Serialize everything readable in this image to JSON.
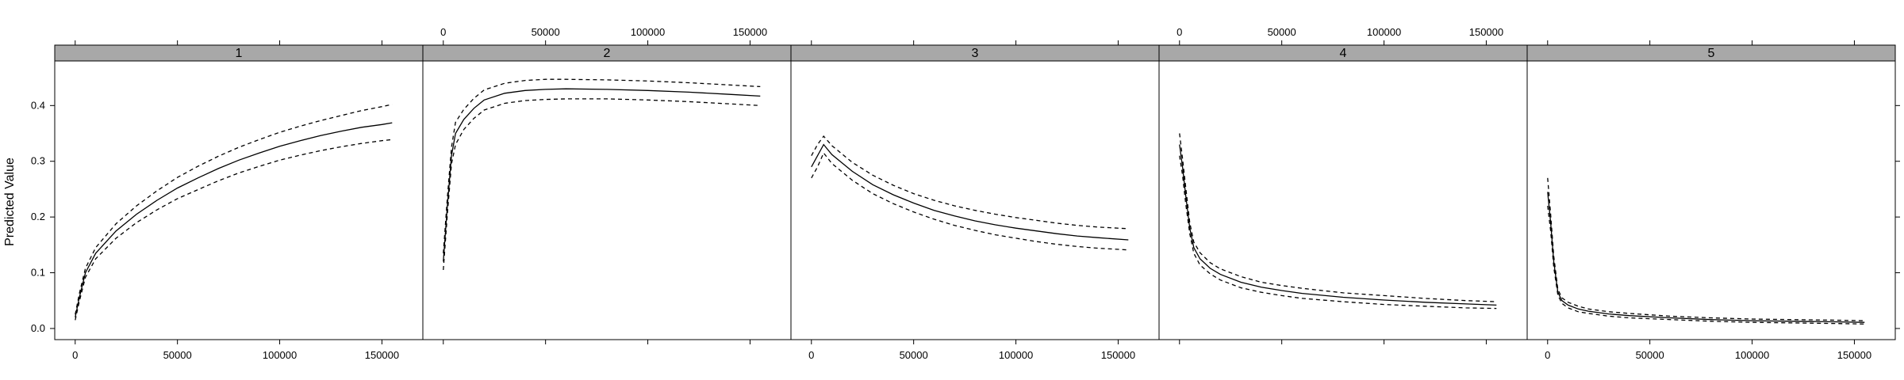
{
  "chart_data": {
    "type": "line",
    "ylabel": "Predicted Value",
    "xlim": [
      -10000,
      170000
    ],
    "ylim": [
      -0.02,
      0.48
    ],
    "xticks": [
      0,
      50000,
      100000,
      150000
    ],
    "xtick_labels": [
      "0",
      "50000",
      "100000",
      "150000"
    ],
    "yticks": [
      0.0,
      0.1,
      0.2,
      0.3,
      0.4
    ],
    "ytick_labels": [
      "0.0",
      "0.1",
      "0.2",
      "0.3",
      "0.4"
    ],
    "colors": {
      "strip": "#a8a8a8",
      "line": "#000000",
      "frame": "#000000"
    },
    "panels": [
      {
        "strip": "1",
        "x": [
          0,
          2000,
          5000,
          10000,
          20000,
          30000,
          40000,
          50000,
          60000,
          70000,
          80000,
          90000,
          100000,
          110000,
          120000,
          130000,
          140000,
          150000,
          155000
        ],
        "fit": [
          0.02,
          0.055,
          0.1,
          0.135,
          0.175,
          0.205,
          0.23,
          0.252,
          0.27,
          0.287,
          0.302,
          0.315,
          0.327,
          0.337,
          0.346,
          0.354,
          0.361,
          0.366,
          0.369
        ],
        "upper": [
          0.025,
          0.062,
          0.108,
          0.145,
          0.188,
          0.22,
          0.247,
          0.271,
          0.291,
          0.309,
          0.325,
          0.339,
          0.352,
          0.363,
          0.373,
          0.382,
          0.391,
          0.398,
          0.402
        ],
        "lower": [
          0.015,
          0.048,
          0.092,
          0.125,
          0.162,
          0.19,
          0.213,
          0.233,
          0.249,
          0.265,
          0.279,
          0.291,
          0.302,
          0.311,
          0.319,
          0.326,
          0.332,
          0.337,
          0.339
        ]
      },
      {
        "strip": "2",
        "x": [
          0,
          2000,
          4000,
          6000,
          10000,
          15000,
          20000,
          30000,
          40000,
          50000,
          60000,
          80000,
          100000,
          120000,
          140000,
          155000
        ],
        "fit": [
          0.12,
          0.22,
          0.31,
          0.35,
          0.375,
          0.395,
          0.41,
          0.422,
          0.427,
          0.429,
          0.43,
          0.429,
          0.427,
          0.424,
          0.42,
          0.417
        ],
        "upper": [
          0.135,
          0.235,
          0.325,
          0.37,
          0.393,
          0.413,
          0.428,
          0.44,
          0.445,
          0.447,
          0.447,
          0.446,
          0.444,
          0.441,
          0.437,
          0.434
        ],
        "lower": [
          0.105,
          0.205,
          0.295,
          0.33,
          0.357,
          0.377,
          0.392,
          0.404,
          0.409,
          0.411,
          0.412,
          0.412,
          0.41,
          0.407,
          0.403,
          0.4
        ]
      },
      {
        "strip": "3",
        "x": [
          0,
          3000,
          6000,
          10000,
          20000,
          30000,
          40000,
          50000,
          60000,
          70000,
          80000,
          90000,
          100000,
          110000,
          120000,
          130000,
          140000,
          155000
        ],
        "fit": [
          0.29,
          0.31,
          0.33,
          0.312,
          0.282,
          0.258,
          0.24,
          0.225,
          0.212,
          0.202,
          0.193,
          0.186,
          0.18,
          0.175,
          0.17,
          0.166,
          0.163,
          0.159
        ],
        "upper": [
          0.31,
          0.33,
          0.345,
          0.328,
          0.298,
          0.275,
          0.257,
          0.242,
          0.23,
          0.22,
          0.212,
          0.205,
          0.199,
          0.194,
          0.189,
          0.185,
          0.182,
          0.179
        ],
        "lower": [
          0.27,
          0.29,
          0.315,
          0.296,
          0.266,
          0.242,
          0.224,
          0.209,
          0.196,
          0.185,
          0.176,
          0.168,
          0.162,
          0.156,
          0.151,
          0.147,
          0.144,
          0.141
        ]
      },
      {
        "strip": "4",
        "x": [
          0,
          1500,
          3000,
          5000,
          7000,
          10000,
          15000,
          20000,
          30000,
          40000,
          50000,
          60000,
          80000,
          100000,
          120000,
          140000,
          155000
        ],
        "fit": [
          0.33,
          0.29,
          0.24,
          0.18,
          0.145,
          0.125,
          0.108,
          0.097,
          0.083,
          0.074,
          0.068,
          0.063,
          0.056,
          0.051,
          0.047,
          0.044,
          0.042
        ],
        "upper": [
          0.35,
          0.305,
          0.255,
          0.19,
          0.155,
          0.136,
          0.118,
          0.107,
          0.093,
          0.083,
          0.077,
          0.072,
          0.064,
          0.059,
          0.054,
          0.05,
          0.048
        ],
        "lower": [
          0.31,
          0.275,
          0.225,
          0.17,
          0.135,
          0.114,
          0.098,
          0.087,
          0.073,
          0.065,
          0.059,
          0.054,
          0.048,
          0.043,
          0.04,
          0.037,
          0.036
        ]
      },
      {
        "strip": "5",
        "x": [
          0,
          1500,
          3000,
          5000,
          7000,
          10000,
          15000,
          20000,
          30000,
          40000,
          60000,
          80000,
          100000,
          120000,
          140000,
          155000
        ],
        "fit": [
          0.245,
          0.19,
          0.12,
          0.065,
          0.05,
          0.042,
          0.035,
          0.031,
          0.026,
          0.023,
          0.019,
          0.016,
          0.014,
          0.013,
          0.012,
          0.011
        ],
        "upper": [
          0.27,
          0.205,
          0.13,
          0.07,
          0.055,
          0.047,
          0.04,
          0.035,
          0.03,
          0.027,
          0.022,
          0.019,
          0.017,
          0.016,
          0.015,
          0.014
        ],
        "lower": [
          0.22,
          0.175,
          0.11,
          0.06,
          0.045,
          0.037,
          0.03,
          0.027,
          0.022,
          0.019,
          0.016,
          0.013,
          0.011,
          0.01,
          0.009,
          0.008
        ]
      }
    ]
  }
}
